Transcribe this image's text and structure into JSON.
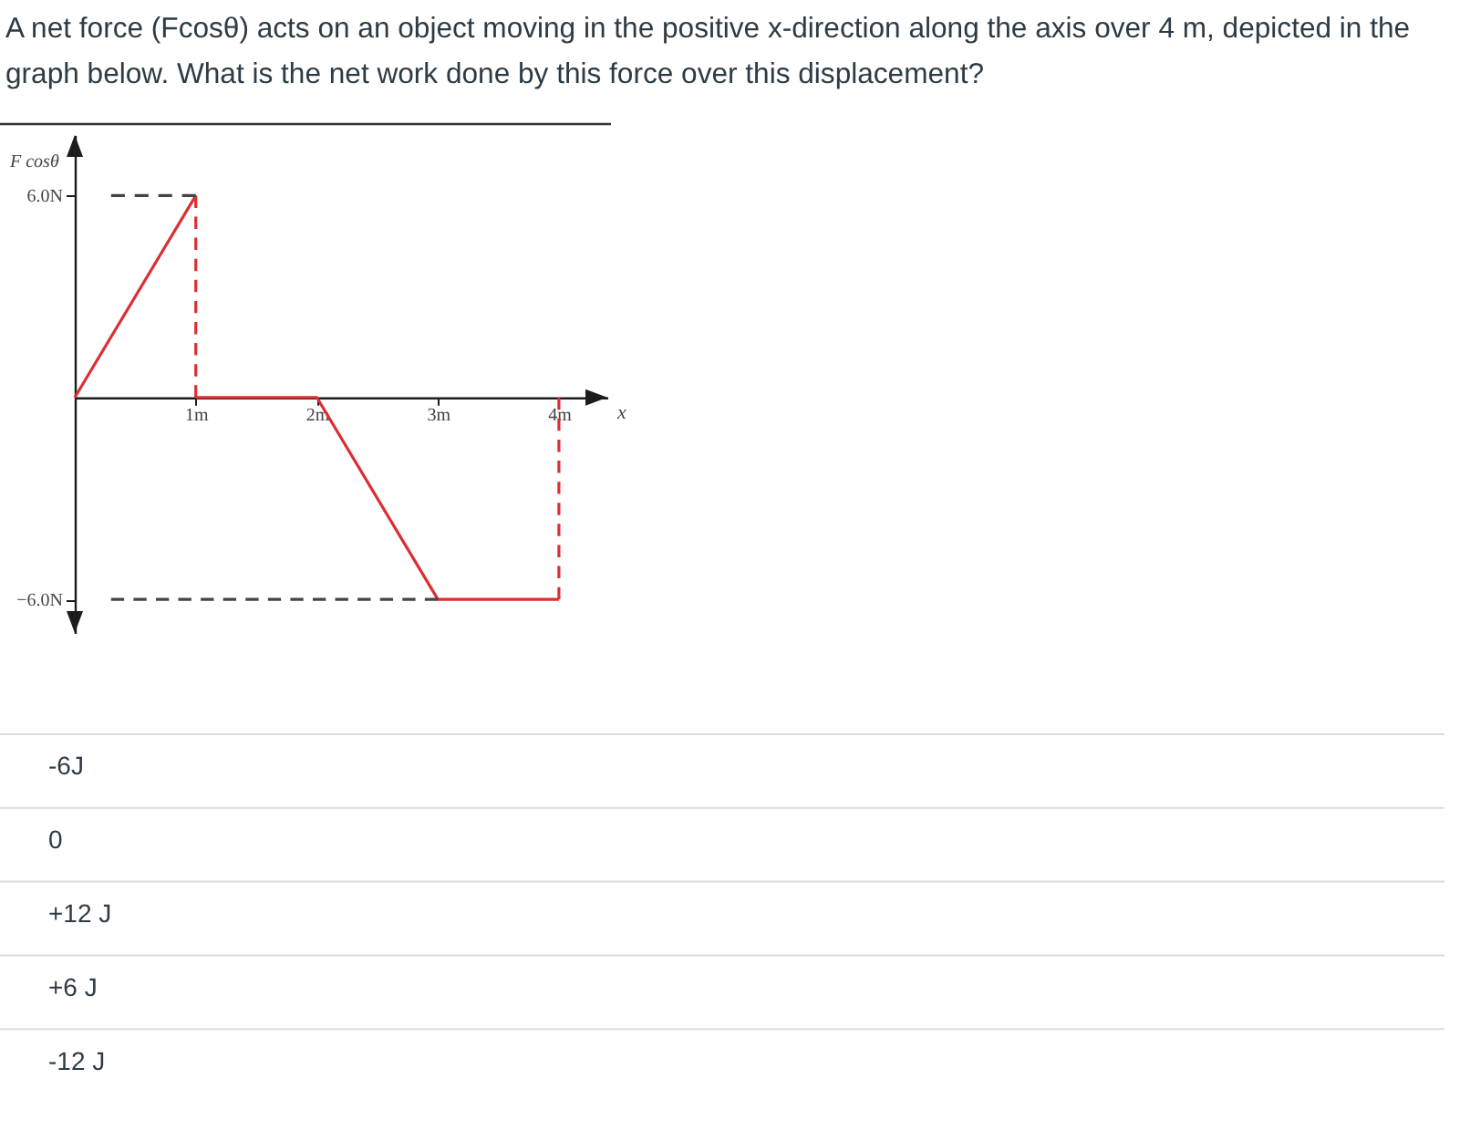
{
  "chart_data": {
    "type": "line",
    "title": "A net force (Fcosθ) acts on an object moving in the positive x-direction along the axis over 4 m, depicted in the graph below. What is the net work done by this force over this displacement?",
    "xlabel": "x",
    "ylabel": "F cosθ",
    "series": [
      {
        "color": "#dc2e33",
        "x": [
          0,
          1
        ],
        "values": [
          0,
          6
        ]
      },
      {
        "color": "#dc2e33",
        "x": [
          1,
          1
        ],
        "values": [
          6,
          0
        ],
        "line_style": "dashed"
      },
      {
        "color": "#dc2e33",
        "x": [
          1,
          2,
          3,
          4
        ],
        "values": [
          0,
          0,
          -6,
          -6
        ]
      },
      {
        "color": "#dc2e33",
        "x": [
          4,
          4
        ],
        "values": [
          -6,
          0
        ],
        "line_style": "dashed"
      },
      {
        "color": "#444444",
        "x": [
          0.3,
          1
        ],
        "values": [
          6,
          6
        ],
        "line_style": "dashed"
      },
      {
        "color": "#444444",
        "x": [
          0.3,
          3
        ],
        "values": [
          -6,
          -6
        ],
        "line_style": "dashed"
      }
    ],
    "xlim": [
      0,
      4.4
    ],
    "ylim": [
      -7,
      7.8
    ],
    "xticks": [
      {
        "value": 1,
        "label": "1m"
      },
      {
        "value": 2,
        "label": "2m"
      },
      {
        "value": 3,
        "label": "3m"
      },
      {
        "value": 4,
        "label": "4m"
      }
    ],
    "yticks": [
      {
        "value": -6,
        "label": "−6.0N"
      },
      {
        "value": 6,
        "label": "6.0N"
      }
    ],
    "annotations": [
      "-6J",
      "0",
      "+12 J",
      "+6 J",
      "-12 J"
    ]
  }
}
